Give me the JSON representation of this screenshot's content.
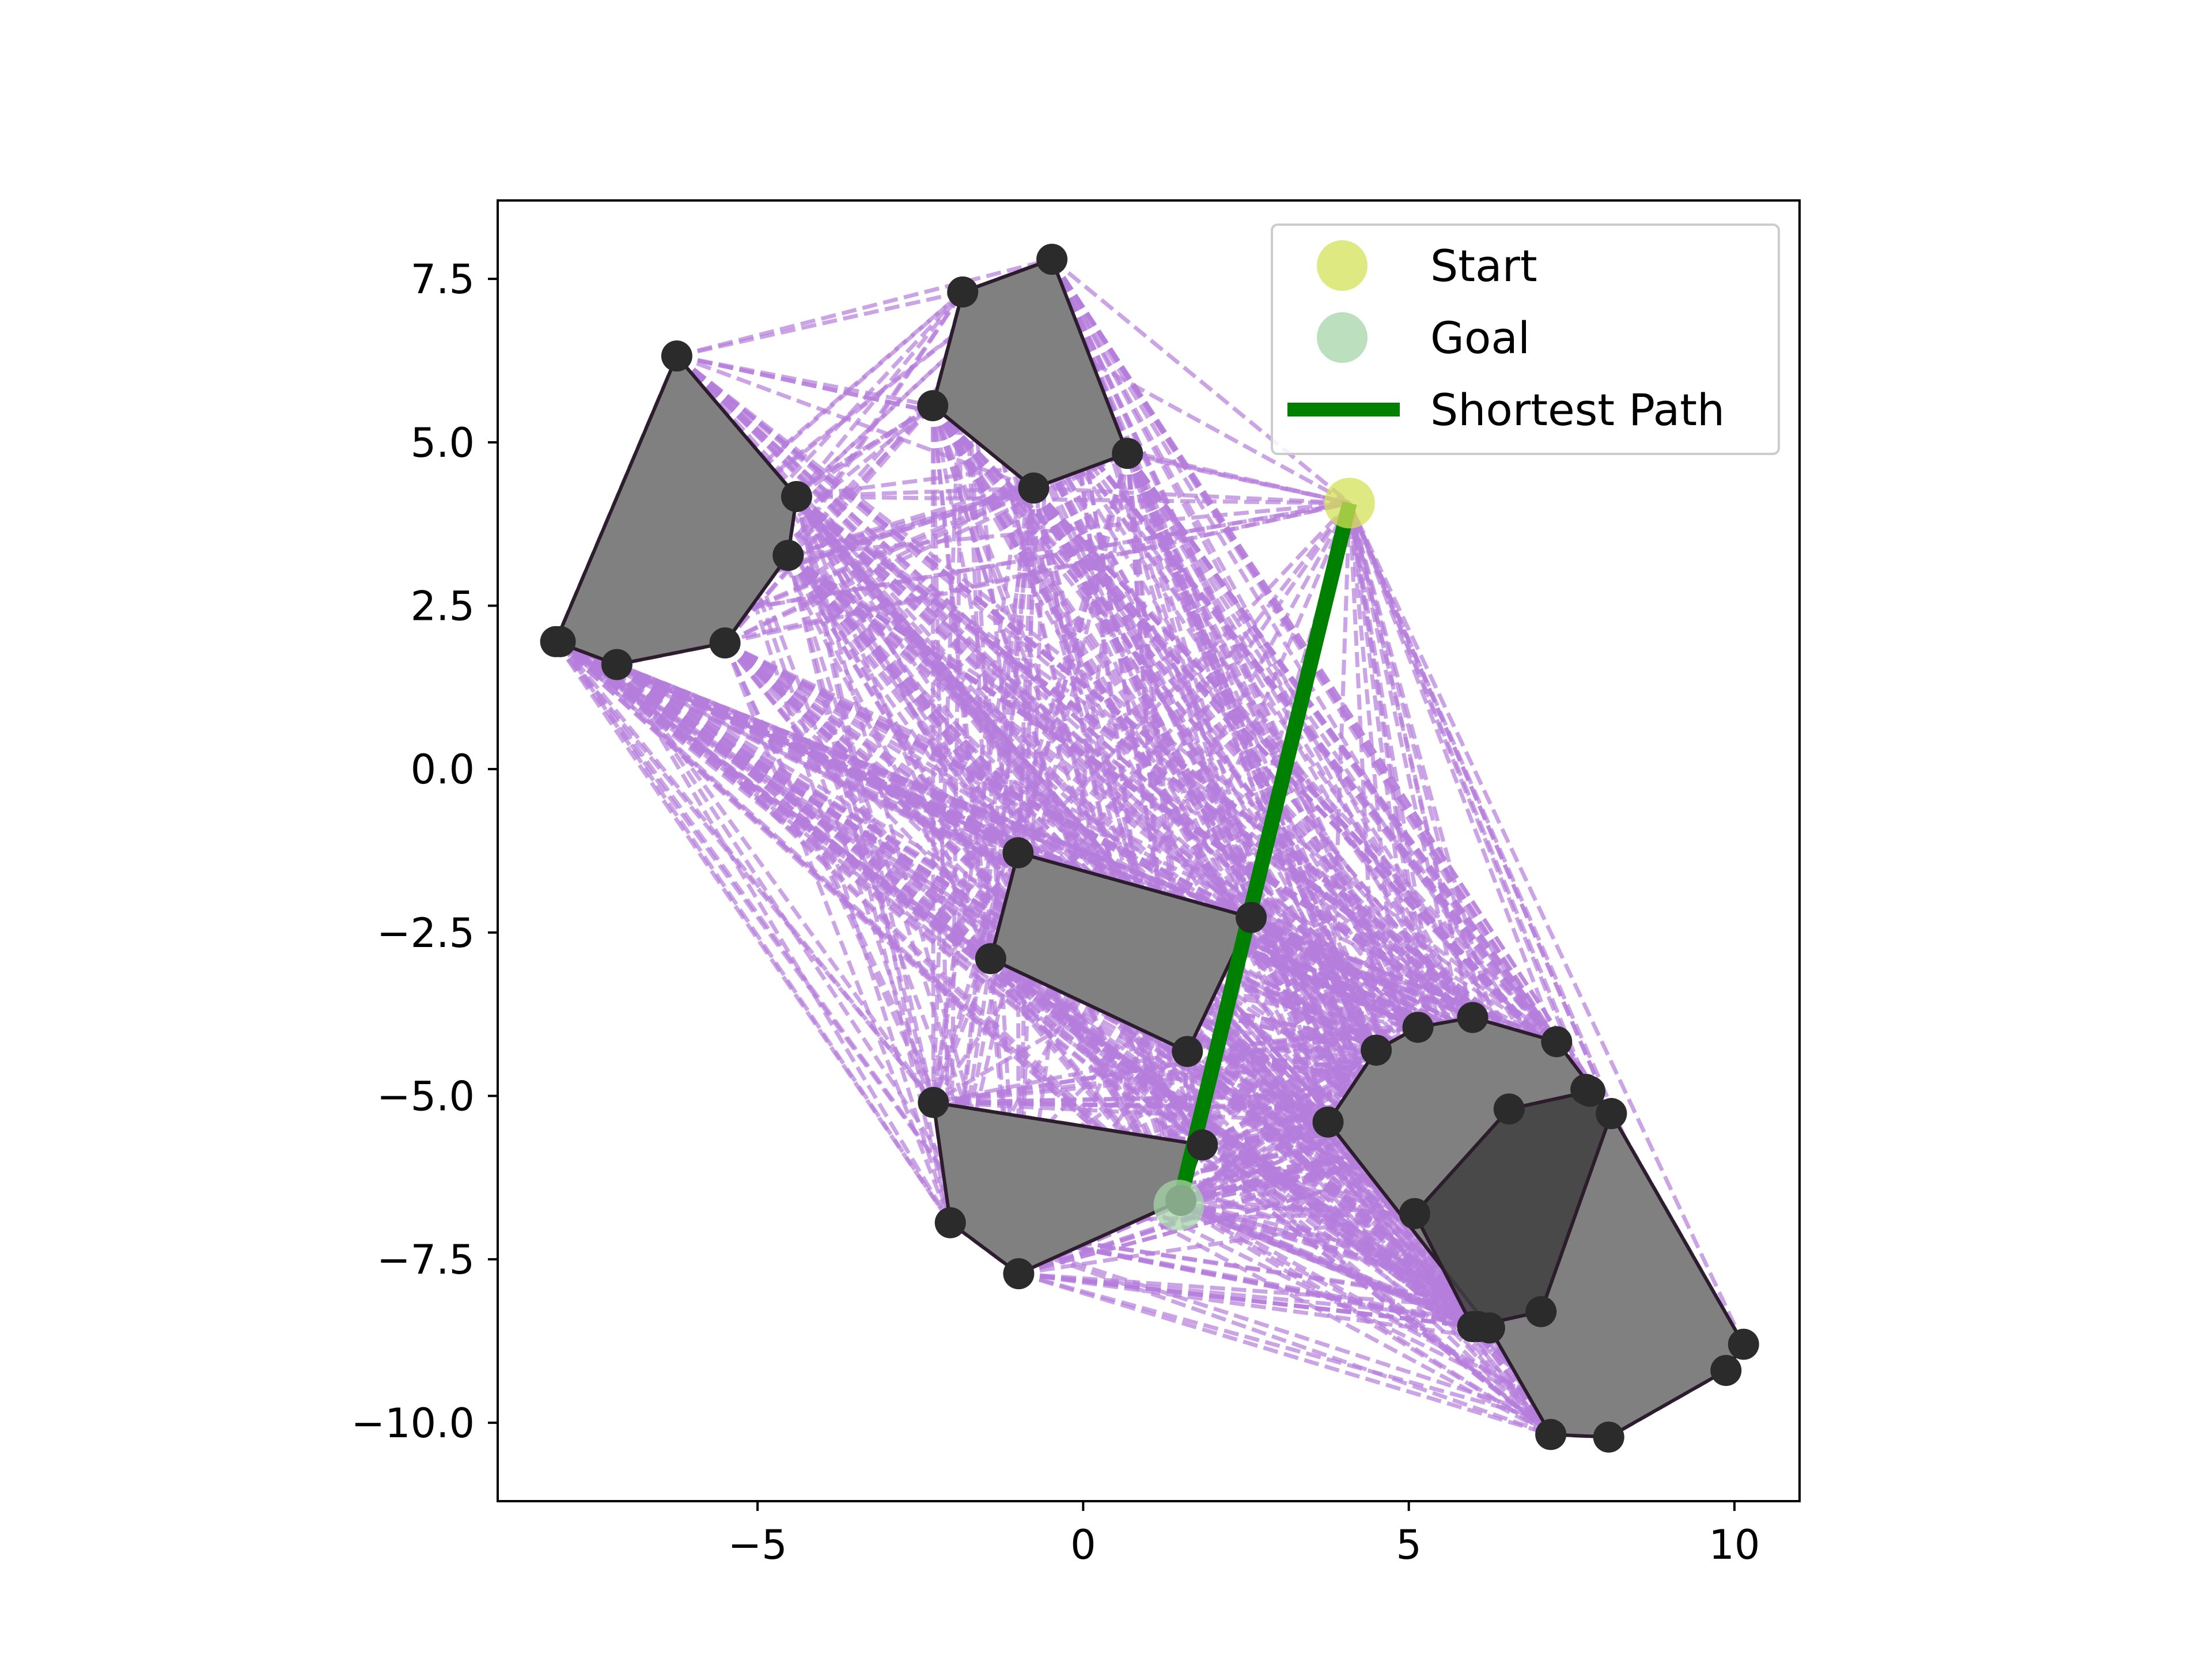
{
  "chart_data": {
    "type": "scatter",
    "title": "",
    "xlabel": "",
    "ylabel": "",
    "xlim": [
      -8.99,
      11.0
    ],
    "ylim": [
      -11.2,
      8.7
    ],
    "grid": false,
    "x_ticks": [
      {
        "value": -5,
        "label": "−5"
      },
      {
        "value": 0,
        "label": "0"
      },
      {
        "value": 5,
        "label": "5"
      },
      {
        "value": 10,
        "label": "10"
      }
    ],
    "y_ticks": [
      {
        "value": 7.5,
        "label": "7.5"
      },
      {
        "value": 5.0,
        "label": "5.0"
      },
      {
        "value": 2.5,
        "label": "2.5"
      },
      {
        "value": 0.0,
        "label": "0.0"
      },
      {
        "value": -2.5,
        "label": "−2.5"
      },
      {
        "value": -5.0,
        "label": "−5.0"
      },
      {
        "value": -7.5,
        "label": "−7.5"
      },
      {
        "value": -10.0,
        "label": "−10.0"
      }
    ],
    "legend": {
      "placement": "top-right",
      "entries": [
        {
          "label": "Start",
          "kind": "marker",
          "color": "#d4e157"
        },
        {
          "label": "Goal",
          "kind": "marker",
          "color": "#a5d6a7"
        },
        {
          "label": "Shortest Path",
          "kind": "line",
          "color": "#008000"
        }
      ]
    },
    "colors": {
      "obstacle_fill": "#808080",
      "obstacle_dark_fill": "#404040",
      "obstacle_edge": "#2b1d2b",
      "vertex": "#2b2b2b",
      "visibility_edge": "#b57edc",
      "path": "#008000",
      "start": "#d4e157",
      "goal": "#a5d6a7"
    },
    "obstacles": [
      {
        "name": "top-left",
        "shade": "normal",
        "vertices": [
          [
            -6.24,
            6.32
          ],
          [
            -4.4,
            4.17
          ],
          [
            -4.53,
            3.27
          ],
          [
            -5.5,
            1.93
          ],
          [
            -7.16,
            1.6
          ],
          [
            -8.1,
            1.95
          ]
        ]
      },
      {
        "name": "top-center",
        "shade": "normal",
        "vertices": [
          [
            -0.48,
            7.8
          ],
          [
            0.68,
            4.83
          ],
          [
            -0.76,
            4.3
          ],
          [
            -2.31,
            5.56
          ],
          [
            -1.85,
            7.3
          ]
        ]
      },
      {
        "name": "center",
        "shade": "normal",
        "vertices": [
          [
            -1.0,
            -1.28
          ],
          [
            2.58,
            -2.27
          ],
          [
            1.6,
            -4.32
          ],
          [
            -1.42,
            -2.9
          ]
        ]
      },
      {
        "name": "bottom-left",
        "shade": "normal",
        "vertices": [
          [
            -2.3,
            -5.1
          ],
          [
            1.83,
            -5.75
          ],
          [
            1.5,
            -6.6
          ],
          [
            -0.99,
            -7.72
          ],
          [
            -2.04,
            -6.94
          ]
        ]
      },
      {
        "name": "bottom-right",
        "shade": "normal",
        "vertices": [
          [
            4.5,
            -4.3
          ],
          [
            5.14,
            -3.95
          ],
          [
            5.98,
            -3.8
          ],
          [
            7.27,
            -4.17
          ],
          [
            8.11,
            -5.27
          ],
          [
            10.14,
            -8.8
          ],
          [
            9.87,
            -9.2
          ],
          [
            8.07,
            -10.22
          ],
          [
            7.18,
            -10.18
          ],
          [
            6.24,
            -8.55
          ],
          [
            3.76,
            -5.4
          ]
        ]
      },
      {
        "name": "bottom-right-inner",
        "shade": "dark",
        "vertices": [
          [
            6.54,
            -5.2
          ],
          [
            7.78,
            -4.93
          ],
          [
            8.11,
            -5.27
          ],
          [
            7.03,
            -8.3
          ],
          [
            5.98,
            -8.53
          ],
          [
            5.09,
            -6.8
          ]
        ]
      }
    ],
    "extra_vertices": [
      [
        -8.03,
        1.95
      ],
      [
        6.07,
        -8.53
      ],
      [
        7.72,
        -4.9
      ]
    ],
    "start": {
      "x": 4.09,
      "y": 4.07
    },
    "goal": {
      "x": 1.47,
      "y": -6.67
    },
    "shortest_path": [
      [
        4.09,
        4.07
      ],
      [
        1.47,
        -6.67
      ]
    ]
  }
}
